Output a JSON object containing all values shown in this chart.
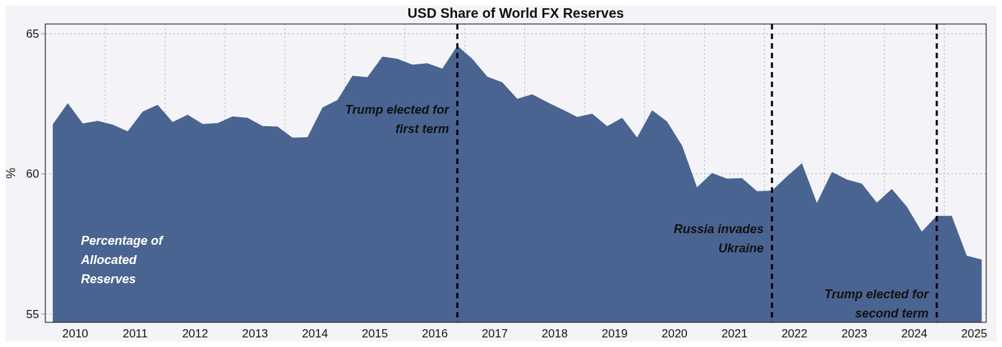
{
  "chart_data": {
    "type": "area",
    "title": "USD Share of World FX Reserves",
    "ylabel": "%",
    "x": [
      2010.125,
      2010.375,
      2010.625,
      2010.875,
      2011.125,
      2011.375,
      2011.625,
      2011.875,
      2012.125,
      2012.375,
      2012.625,
      2012.875,
      2013.125,
      2013.375,
      2013.625,
      2013.875,
      2014.125,
      2014.375,
      2014.625,
      2014.875,
      2015.125,
      2015.375,
      2015.625,
      2015.875,
      2016.125,
      2016.375,
      2016.625,
      2016.875,
      2017.125,
      2017.375,
      2017.625,
      2017.875,
      2018.125,
      2018.375,
      2018.625,
      2018.875,
      2019.125,
      2019.375,
      2019.625,
      2019.875,
      2020.125,
      2020.375,
      2020.625,
      2020.875,
      2021.125,
      2021.375,
      2021.625,
      2021.875,
      2022.125,
      2022.375,
      2022.625,
      2022.875,
      2023.125,
      2023.375,
      2023.625,
      2023.875,
      2024.125,
      2024.375,
      2024.625,
      2024.875,
      2025.125,
      2025.375,
      2025.625
    ],
    "series": [
      {
        "color": "#4a6491",
        "values": [
          61.77,
          62.52,
          61.8,
          61.89,
          61.76,
          61.52,
          62.22,
          62.47,
          61.85,
          62.11,
          61.78,
          61.81,
          62.05,
          62.0,
          61.71,
          61.69,
          61.29,
          61.31,
          62.37,
          62.64,
          63.5,
          63.45,
          64.19,
          64.11,
          63.9,
          63.95,
          63.76,
          64.57,
          64.11,
          63.47,
          63.27,
          62.68,
          62.84,
          62.56,
          62.3,
          62.03,
          62.15,
          61.7,
          62.0,
          61.3,
          62.27,
          61.87,
          61.01,
          59.52,
          60.03,
          59.83,
          59.85,
          59.38,
          59.4,
          59.91,
          60.38,
          58.96,
          60.07,
          59.8,
          59.65,
          58.97,
          59.46,
          58.83,
          57.94,
          58.5,
          58.5,
          57.08,
          56.94
        ]
      }
    ],
    "xlim": [
      2010,
      2025.7
    ],
    "xticks": [
      {
        "value": 2010.5,
        "label": "2010"
      },
      {
        "value": 2011,
        "label": null
      },
      {
        "value": 2011.5,
        "label": "2011"
      },
      {
        "value": 2012,
        "label": null
      },
      {
        "value": 2012.5,
        "label": "2012"
      },
      {
        "value": 2013,
        "label": null
      },
      {
        "value": 2013.5,
        "label": "2013"
      },
      {
        "value": 2014,
        "label": null
      },
      {
        "value": 2014.5,
        "label": "2014"
      },
      {
        "value": 2015,
        "label": null
      },
      {
        "value": 2015.5,
        "label": "2015"
      },
      {
        "value": 2016,
        "label": null
      },
      {
        "value": 2016.5,
        "label": "2016"
      },
      {
        "value": 2017,
        "label": null
      },
      {
        "value": 2017.5,
        "label": "2017"
      },
      {
        "value": 2018,
        "label": null
      },
      {
        "value": 2018.5,
        "label": "2018"
      },
      {
        "value": 2019,
        "label": null
      },
      {
        "value": 2019.5,
        "label": "2019"
      },
      {
        "value": 2020,
        "label": null
      },
      {
        "value": 2020.5,
        "label": "2020"
      },
      {
        "value": 2021,
        "label": null
      },
      {
        "value": 2021.5,
        "label": "2021"
      },
      {
        "value": 2022,
        "label": null
      },
      {
        "value": 2022.5,
        "label": "2022"
      },
      {
        "value": 2023,
        "label": null
      },
      {
        "value": 2023.5,
        "label": "2023"
      },
      {
        "value": 2024,
        "label": null
      },
      {
        "value": 2024.5,
        "label": "2024"
      },
      {
        "value": 2025,
        "label": null
      },
      {
        "value": 2025.5,
        "label": "2025"
      }
    ],
    "ylim": [
      54.7,
      65.35
    ],
    "yticks": [
      55,
      60,
      65
    ],
    "grid": true,
    "ref_lines": [
      {
        "axis": "x",
        "value": 2016.875,
        "label": "Trump elected for first term",
        "color": "#000000",
        "line_style": "dashed"
      },
      {
        "axis": "x",
        "value": 2022.125,
        "label": "Russia invades Ukraine",
        "color": "#000000",
        "line_style": "dashed"
      },
      {
        "axis": "x",
        "value": 2024.875,
        "label": "Trump elected for second term",
        "color": "#000000",
        "line_style": "dashed"
      }
    ],
    "annotations": [
      "Percentage of Allocated Reserves"
    ]
  }
}
